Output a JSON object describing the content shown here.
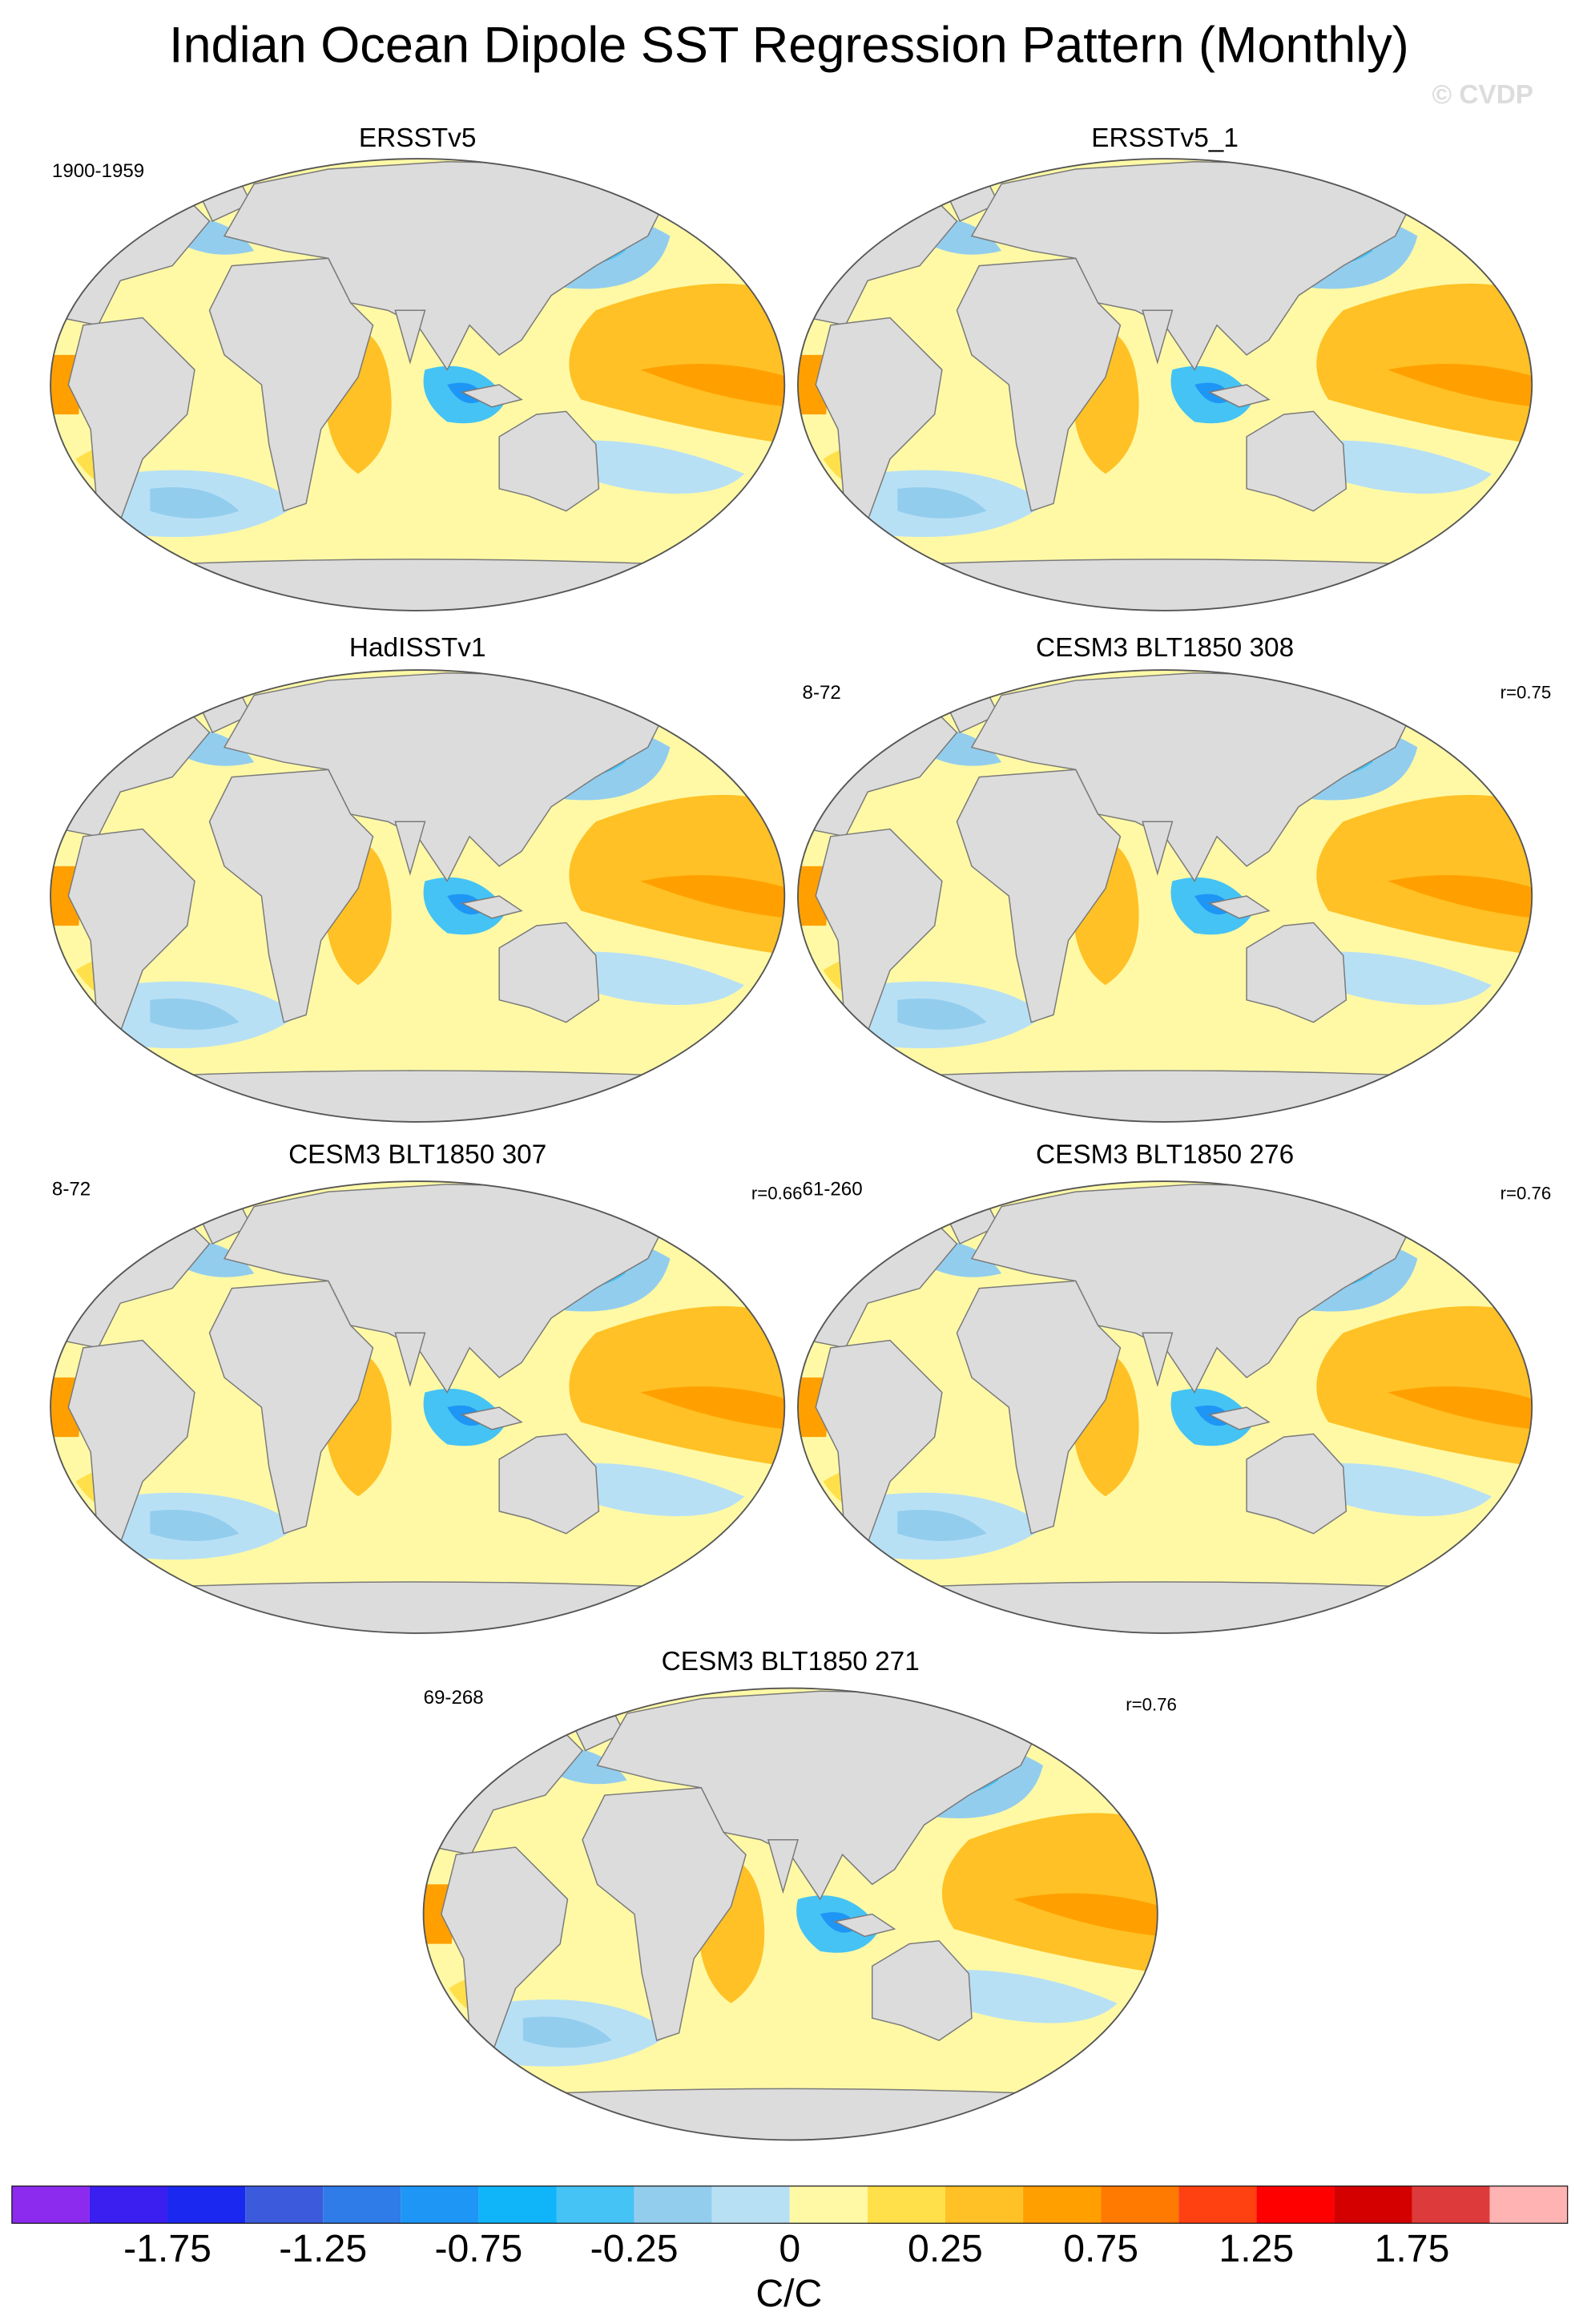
{
  "title": "Indian Ocean Dipole SST Regression Pattern (Monthly)",
  "watermark": "© CVDP",
  "panels": [
    {
      "title": "ERSSTv5",
      "left_label": "1900-1959"
    },
    {
      "title": "ERSSTv5_1"
    },
    {
      "title": "HadISSTv1"
    },
    {
      "title": "CESM3 BLT1850 308",
      "left_label": "8-72",
      "right_label": "r=0.75"
    },
    {
      "title": "CESM3 BLT1850 307",
      "left_label": "8-72",
      "right_label": "r=0.66"
    },
    {
      "title": "CESM3 BLT1850 276",
      "left_label": "61-260",
      "right_label": "r=0.76"
    },
    {
      "title": "CESM3 BLT1850 271",
      "left_label": "69-268",
      "right_label": "r=0.76"
    }
  ],
  "colorbar": {
    "colors": [
      "#8c2bee",
      "#3b1ef0",
      "#1a28f0",
      "#3b5bdc",
      "#2f7be8",
      "#1e96f5",
      "#10b4f8",
      "#45c3f5",
      "#93cdee",
      "#b8e0f5",
      "#fff9a6",
      "#ffe04a",
      "#ffc125",
      "#ffa000",
      "#ff7a00",
      "#ff4010",
      "#ff0000",
      "#d40000",
      "#dd3b3b",
      "#ffb3b3"
    ],
    "ticks": [
      -1.75,
      -1.25,
      -0.75,
      -0.25,
      0,
      0.25,
      0.75,
      1.25,
      1.75
    ],
    "label": "C/C"
  }
}
